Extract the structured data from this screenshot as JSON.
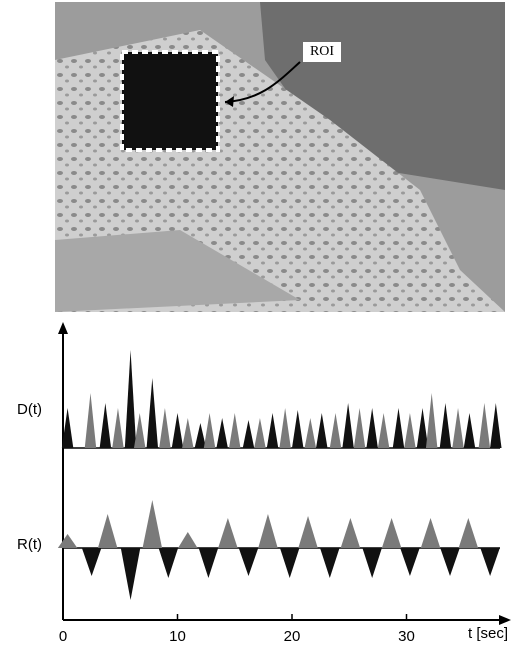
{
  "photo": {
    "roi_label": "ROI"
  },
  "chart_data": {
    "type": "spike",
    "xlabel": "t [sec]",
    "xlim": [
      0,
      38.5
    ],
    "xticks": [
      0,
      10,
      20,
      30
    ],
    "series": [
      {
        "name": "D(t)",
        "colors": [
          "#111111",
          "#7a7a7a"
        ],
        "ylim": [
          0,
          100
        ],
        "x": [
          0.4,
          2.4,
          3.7,
          4.8,
          5.9,
          6.7,
          7.8,
          8.9,
          10.0,
          10.9,
          12.0,
          12.8,
          13.9,
          15.0,
          16.2,
          17.2,
          18.3,
          19.4,
          20.5,
          21.6,
          22.6,
          23.8,
          24.9,
          25.9,
          27.0,
          28.0,
          29.3,
          30.3,
          31.4,
          32.2,
          33.4,
          34.5,
          35.5,
          36.8,
          37.8
        ],
        "values": [
          40,
          55,
          45,
          40,
          98,
          35,
          70,
          40,
          35,
          30,
          25,
          35,
          30,
          35,
          28,
          30,
          35,
          40,
          38,
          30,
          35,
          35,
          45,
          40,
          40,
          35,
          40,
          35,
          40,
          55,
          45,
          40,
          35,
          45,
          45
        ]
      },
      {
        "name": "R(t)",
        "colors": [
          "#7a7a7a",
          "#111111"
        ],
        "ylim": [
          -60,
          60
        ],
        "x": [
          0.4,
          2.5,
          3.9,
          5.9,
          7.8,
          9.2,
          10.9,
          12.7,
          14.4,
          16.2,
          17.9,
          19.8,
          21.4,
          23.3,
          25.1,
          27.0,
          28.7,
          30.3,
          32.1,
          33.8,
          35.4,
          37.3
        ],
        "values": [
          14,
          -28,
          34,
          -52,
          48,
          -30,
          16,
          -30,
          30,
          -28,
          34,
          -30,
          32,
          -30,
          30,
          -30,
          30,
          -28,
          30,
          -28,
          30,
          -28
        ]
      }
    ]
  }
}
